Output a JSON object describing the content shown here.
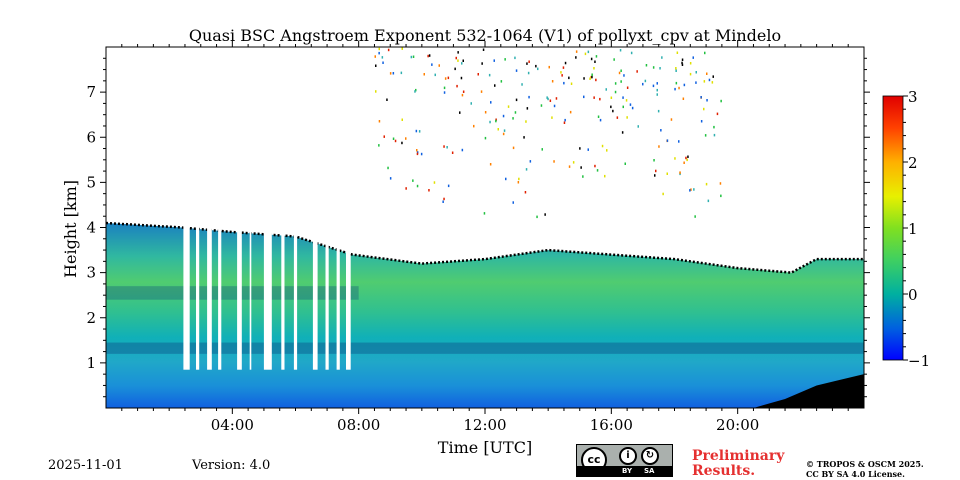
{
  "chart_data": {
    "type": "heatmap",
    "title": "Quasi BSC Angstroem Exponent 532-1064 (V1) of pollyxt_cpv at Mindelo",
    "xlabel": "Time [UTC]",
    "ylabel": "Height [km]",
    "xlim_hours": [
      0,
      24
    ],
    "ylim_km": [
      0,
      8
    ],
    "x_ticks": [
      {
        "value": 4,
        "label": "04:00"
      },
      {
        "value": 8,
        "label": "08:00"
      },
      {
        "value": 12,
        "label": "12:00"
      },
      {
        "value": 16,
        "label": "16:00"
      },
      {
        "value": 20,
        "label": "20:00"
      }
    ],
    "y_ticks": [
      {
        "value": 1,
        "label": "1"
      },
      {
        "value": 2,
        "label": "2"
      },
      {
        "value": 3,
        "label": "3"
      },
      {
        "value": 4,
        "label": "4"
      },
      {
        "value": 5,
        "label": "5"
      },
      {
        "value": 6,
        "label": "6"
      },
      {
        "value": 7,
        "label": "7"
      }
    ],
    "colorbar": {
      "min": -1,
      "max": 3,
      "ticks": [
        {
          "value": 3,
          "label": "3"
        },
        {
          "value": 2,
          "label": "2"
        },
        {
          "value": 1,
          "label": "1"
        },
        {
          "value": 0,
          "label": "0"
        },
        {
          "value": -1,
          "label": "−1"
        }
      ]
    },
    "layer_top_km": [
      [
        0,
        4.1
      ],
      [
        2.4,
        4.0
      ],
      [
        4,
        3.9
      ],
      [
        6,
        3.8
      ],
      [
        7.8,
        3.4
      ],
      [
        10,
        3.2
      ],
      [
        12,
        3.3
      ],
      [
        14,
        3.5
      ],
      [
        16,
        3.4
      ],
      [
        18,
        3.3
      ],
      [
        20,
        3.1
      ],
      [
        21.7,
        3.0
      ],
      [
        22.5,
        3.3
      ],
      [
        24,
        3.3
      ]
    ],
    "gap_hours": [
      [
        2.45,
        2.65
      ],
      [
        2.85,
        2.95
      ],
      [
        3.2,
        3.35
      ],
      [
        3.55,
        3.65
      ],
      [
        4.15,
        4.3
      ],
      [
        4.55,
        4.6
      ],
      [
        5.0,
        5.25
      ],
      [
        5.55,
        5.65
      ],
      [
        5.95,
        6.05
      ],
      [
        6.55,
        6.7
      ],
      [
        6.95,
        7.05
      ],
      [
        7.3,
        7.4
      ],
      [
        7.6,
        7.75
      ]
    ]
  },
  "footer": {
    "date": "2025-11-01",
    "version": "Version: 4.0",
    "license_badge": {
      "cc": "cc",
      "by": "BY",
      "sa": "SA"
    },
    "preliminary_line1": "Preliminary",
    "preliminary_line2": "Results.",
    "copyright_line1": "© TROPOS & OSCM 2025.",
    "copyright_line2": "CC BY SA 4.0 License."
  }
}
